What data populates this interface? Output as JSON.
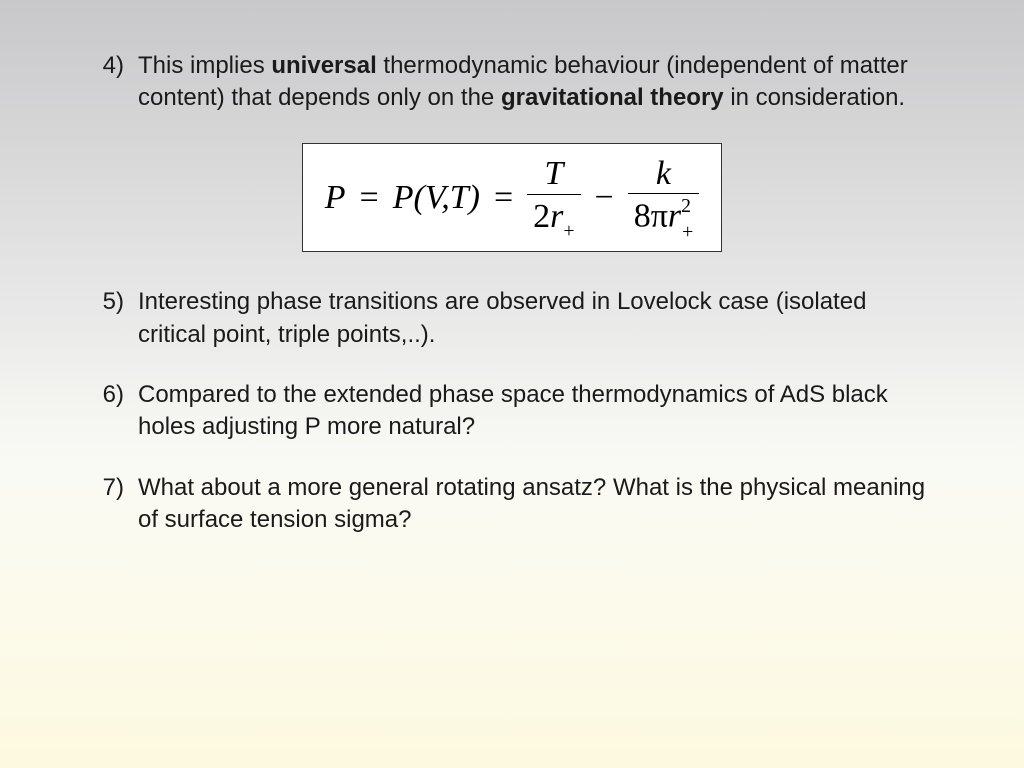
{
  "slide": {
    "background_gradient": [
      "#c8c8ca",
      "#e8e8e8",
      "#fafaf5",
      "#fdf9e0"
    ],
    "text_color": "#1a1a1a",
    "body_fontsize": 24,
    "items": [
      {
        "num": "4)",
        "segments": [
          {
            "t": "This implies ",
            "b": false
          },
          {
            "t": "universal",
            "b": true
          },
          {
            "t": " thermodynamic behaviour (independent of matter content) that depends only on the ",
            "b": false
          },
          {
            "t": "gravitational theory",
            "b": true
          },
          {
            "t": " in consideration.",
            "b": false
          }
        ]
      },
      {
        "num": "5)",
        "segments": [
          {
            "t": "Interesting phase transitions are observed in Lovelock case (isolated critical point, triple points,..).",
            "b": false
          }
        ]
      },
      {
        "num": "6)",
        "segments": [
          {
            "t": "Compared to the extended phase space thermodynamics of AdS black holes adjusting P more natural?",
            "b": false
          }
        ]
      },
      {
        "num": "7)",
        "segments": [
          {
            "t": "What about a more general rotating ansatz? What is the physical meaning of surface tension sigma?",
            "b": false
          }
        ]
      }
    ],
    "equation": {
      "box_bg": "#ffffff",
      "box_border": "#333333",
      "fontsize": 34,
      "lhs": "P",
      "eq1": "=",
      "mid": "P(V,T)",
      "eq2": "=",
      "frac1": {
        "num": "T",
        "den_pre": "2",
        "den_var": "r",
        "den_sub": "+"
      },
      "minus": "−",
      "frac2": {
        "num": "k",
        "den_pre": "8π",
        "den_var": "r",
        "den_sub": "+",
        "den_sup": "2"
      }
    }
  }
}
